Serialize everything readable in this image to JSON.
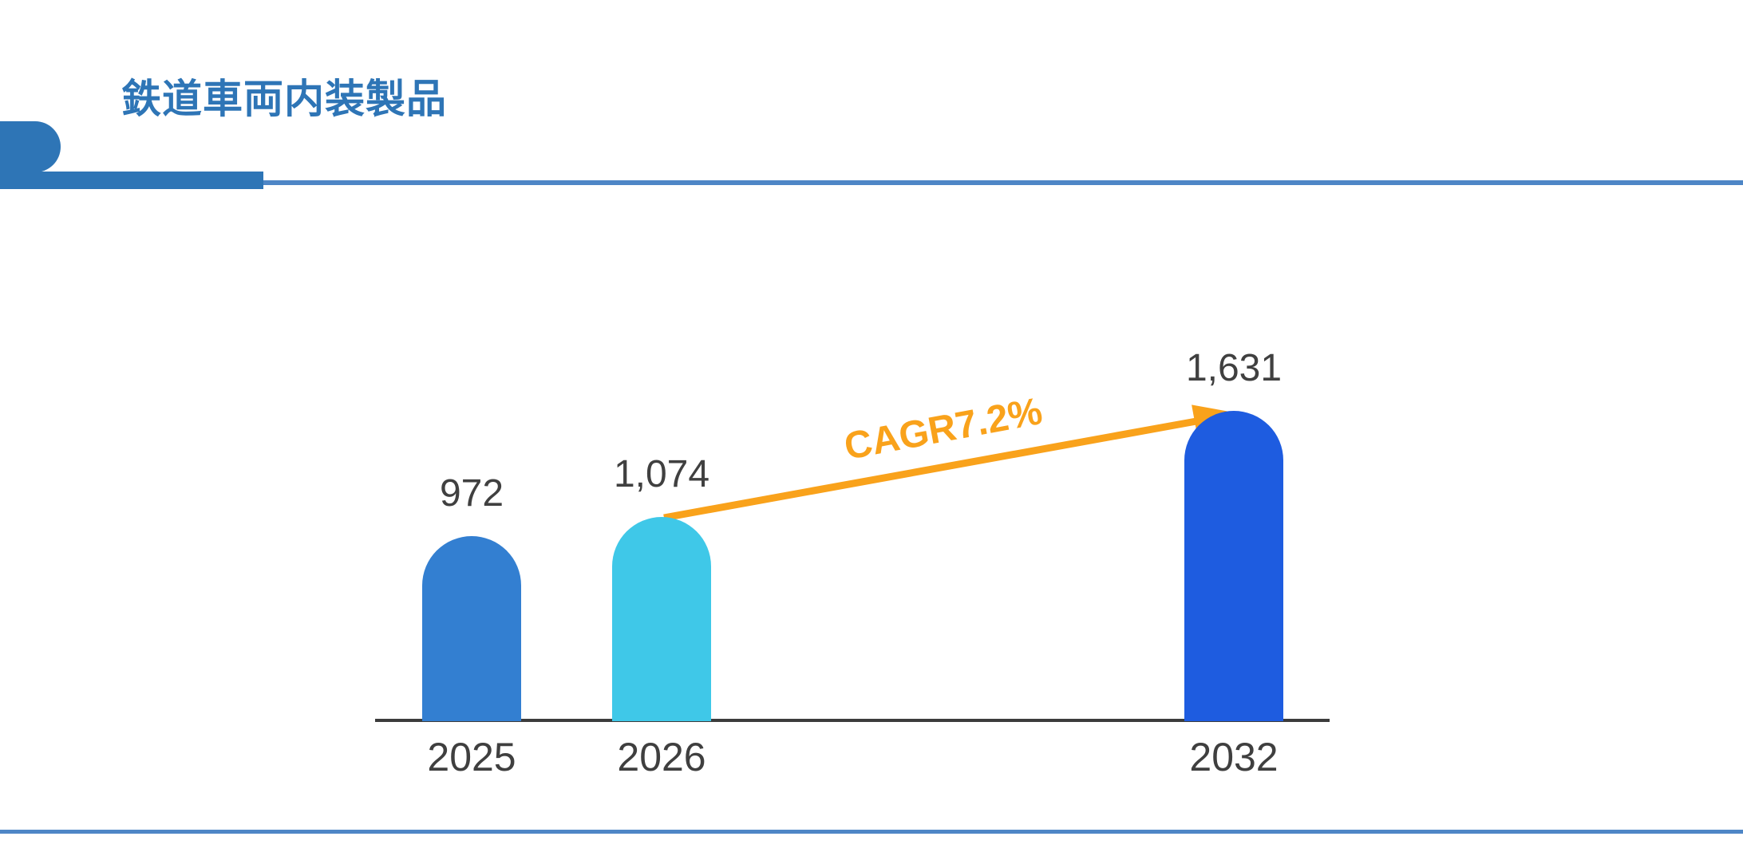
{
  "header": {
    "title": "鉄道車両内装製品",
    "accent_color": "#2E75B6"
  },
  "chart_data": {
    "type": "bar",
    "title": "鉄道車両内装製品",
    "categories": [
      "2025",
      "2026",
      "2032"
    ],
    "values": [
      972,
      1074,
      1631
    ],
    "value_labels": [
      "972",
      "1,074",
      "1,631"
    ],
    "bar_colors": [
      "#337FD1",
      "#3FC8E8",
      "#1E5CE0"
    ],
    "annotation": {
      "text": "CAGR7.2%",
      "color": "#F9A21B",
      "from_category": "2026",
      "to_category": "2032"
    },
    "xlabel": "",
    "ylabel": "",
    "ylim": [
      0,
      1800
    ],
    "grid": false,
    "legend": false,
    "axis_line_color": "#3C3C3C",
    "label_color": "#404040"
  },
  "rules": {
    "color": "#4E86C6"
  }
}
